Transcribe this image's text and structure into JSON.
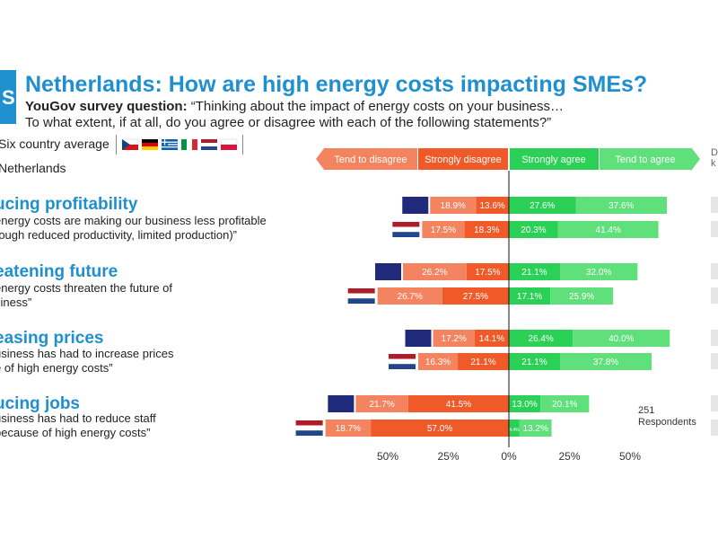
{
  "title": "Netherlands: How are high energy costs impacting SMEs?",
  "question_label": "YouGov survey question:",
  "question_line1": "“Thinking about the impact of energy costs on your business…",
  "question_line2": "To what extent, if at all, do you agree or disagree with each of the following statements?”",
  "legend": {
    "six_country_label": "Six country average",
    "netherlands_label": "Netherlands",
    "flags": [
      "czech-flag-icon",
      "german-flag-icon",
      "greek-flag-icon",
      "italian-flag-icon",
      "dutch-flag-icon",
      "polish-flag-icon"
    ]
  },
  "scale_header": {
    "tend_disagree": "Tend to disagree",
    "strongly_disagree": "Strongly disagree",
    "strongly_agree": "Strongly agree",
    "tend_agree": "Tend to agree",
    "edge_label": "D k"
  },
  "respondents": {
    "line1": "251",
    "line2": "Respondents"
  },
  "statements": [
    {
      "title": "ucing profitability",
      "line1": "energy costs are making our business less profitable",
      "line2": "rough reduced productivity, limited production)”"
    },
    {
      "title": "eatening future",
      "line1": "energy costs threaten the future of",
      "line2": "siness”"
    },
    {
      "title": "easing prices",
      "line1": "usiness has had to increase prices",
      "line2": "e of high energy costs”"
    },
    {
      "title": "ucing jobs",
      "line1": "usiness has had to reduce staff",
      "line2": "because of high energy costs”"
    }
  ],
  "chart_data": {
    "type": "bar",
    "orientation": "horizontal-diverging",
    "x_ticks": [
      "50%",
      "25%",
      "0%",
      "25%",
      "50%"
    ],
    "xlim": [
      -75,
      75
    ],
    "colors": {
      "tend_disagree": "#f4845f",
      "strongly_disagree": "#f05a28",
      "strongly_agree": "#2bd156",
      "tend_agree": "#5fe07a",
      "dont_know_avg": "#1f2a7a"
    },
    "groups": [
      {
        "statement": "ucing profitability",
        "six_country": {
          "tend_disagree": 18.9,
          "strongly_disagree": 13.6,
          "strongly_agree": 27.6,
          "tend_agree": 37.6
        },
        "netherlands": {
          "tend_disagree": 17.5,
          "strongly_disagree": 18.3,
          "strongly_agree": 20.3,
          "tend_agree": 41.4
        }
      },
      {
        "statement": "eatening future",
        "six_country": {
          "tend_disagree": 26.2,
          "strongly_disagree": 17.5,
          "strongly_agree": 21.1,
          "tend_agree": 32.0
        },
        "netherlands": {
          "tend_disagree": 26.7,
          "strongly_disagree": 27.5,
          "strongly_agree": 17.1,
          "tend_agree": 25.9
        }
      },
      {
        "statement": "easing prices",
        "six_country": {
          "tend_disagree": 17.2,
          "strongly_disagree": 14.1,
          "strongly_agree": 26.4,
          "tend_agree": 40.0
        },
        "netherlands": {
          "tend_disagree": 16.3,
          "strongly_disagree": 21.1,
          "strongly_agree": 21.1,
          "tend_agree": 37.8
        }
      },
      {
        "statement": "ucing jobs",
        "six_country": {
          "tend_disagree": 21.7,
          "strongly_disagree": 41.5,
          "strongly_agree": 13.0,
          "tend_agree": 20.1
        },
        "netherlands": {
          "tend_disagree": 18.7,
          "strongly_disagree": 57.0,
          "strongly_agree": 4.4,
          "tend_agree": 13.2
        }
      }
    ]
  }
}
